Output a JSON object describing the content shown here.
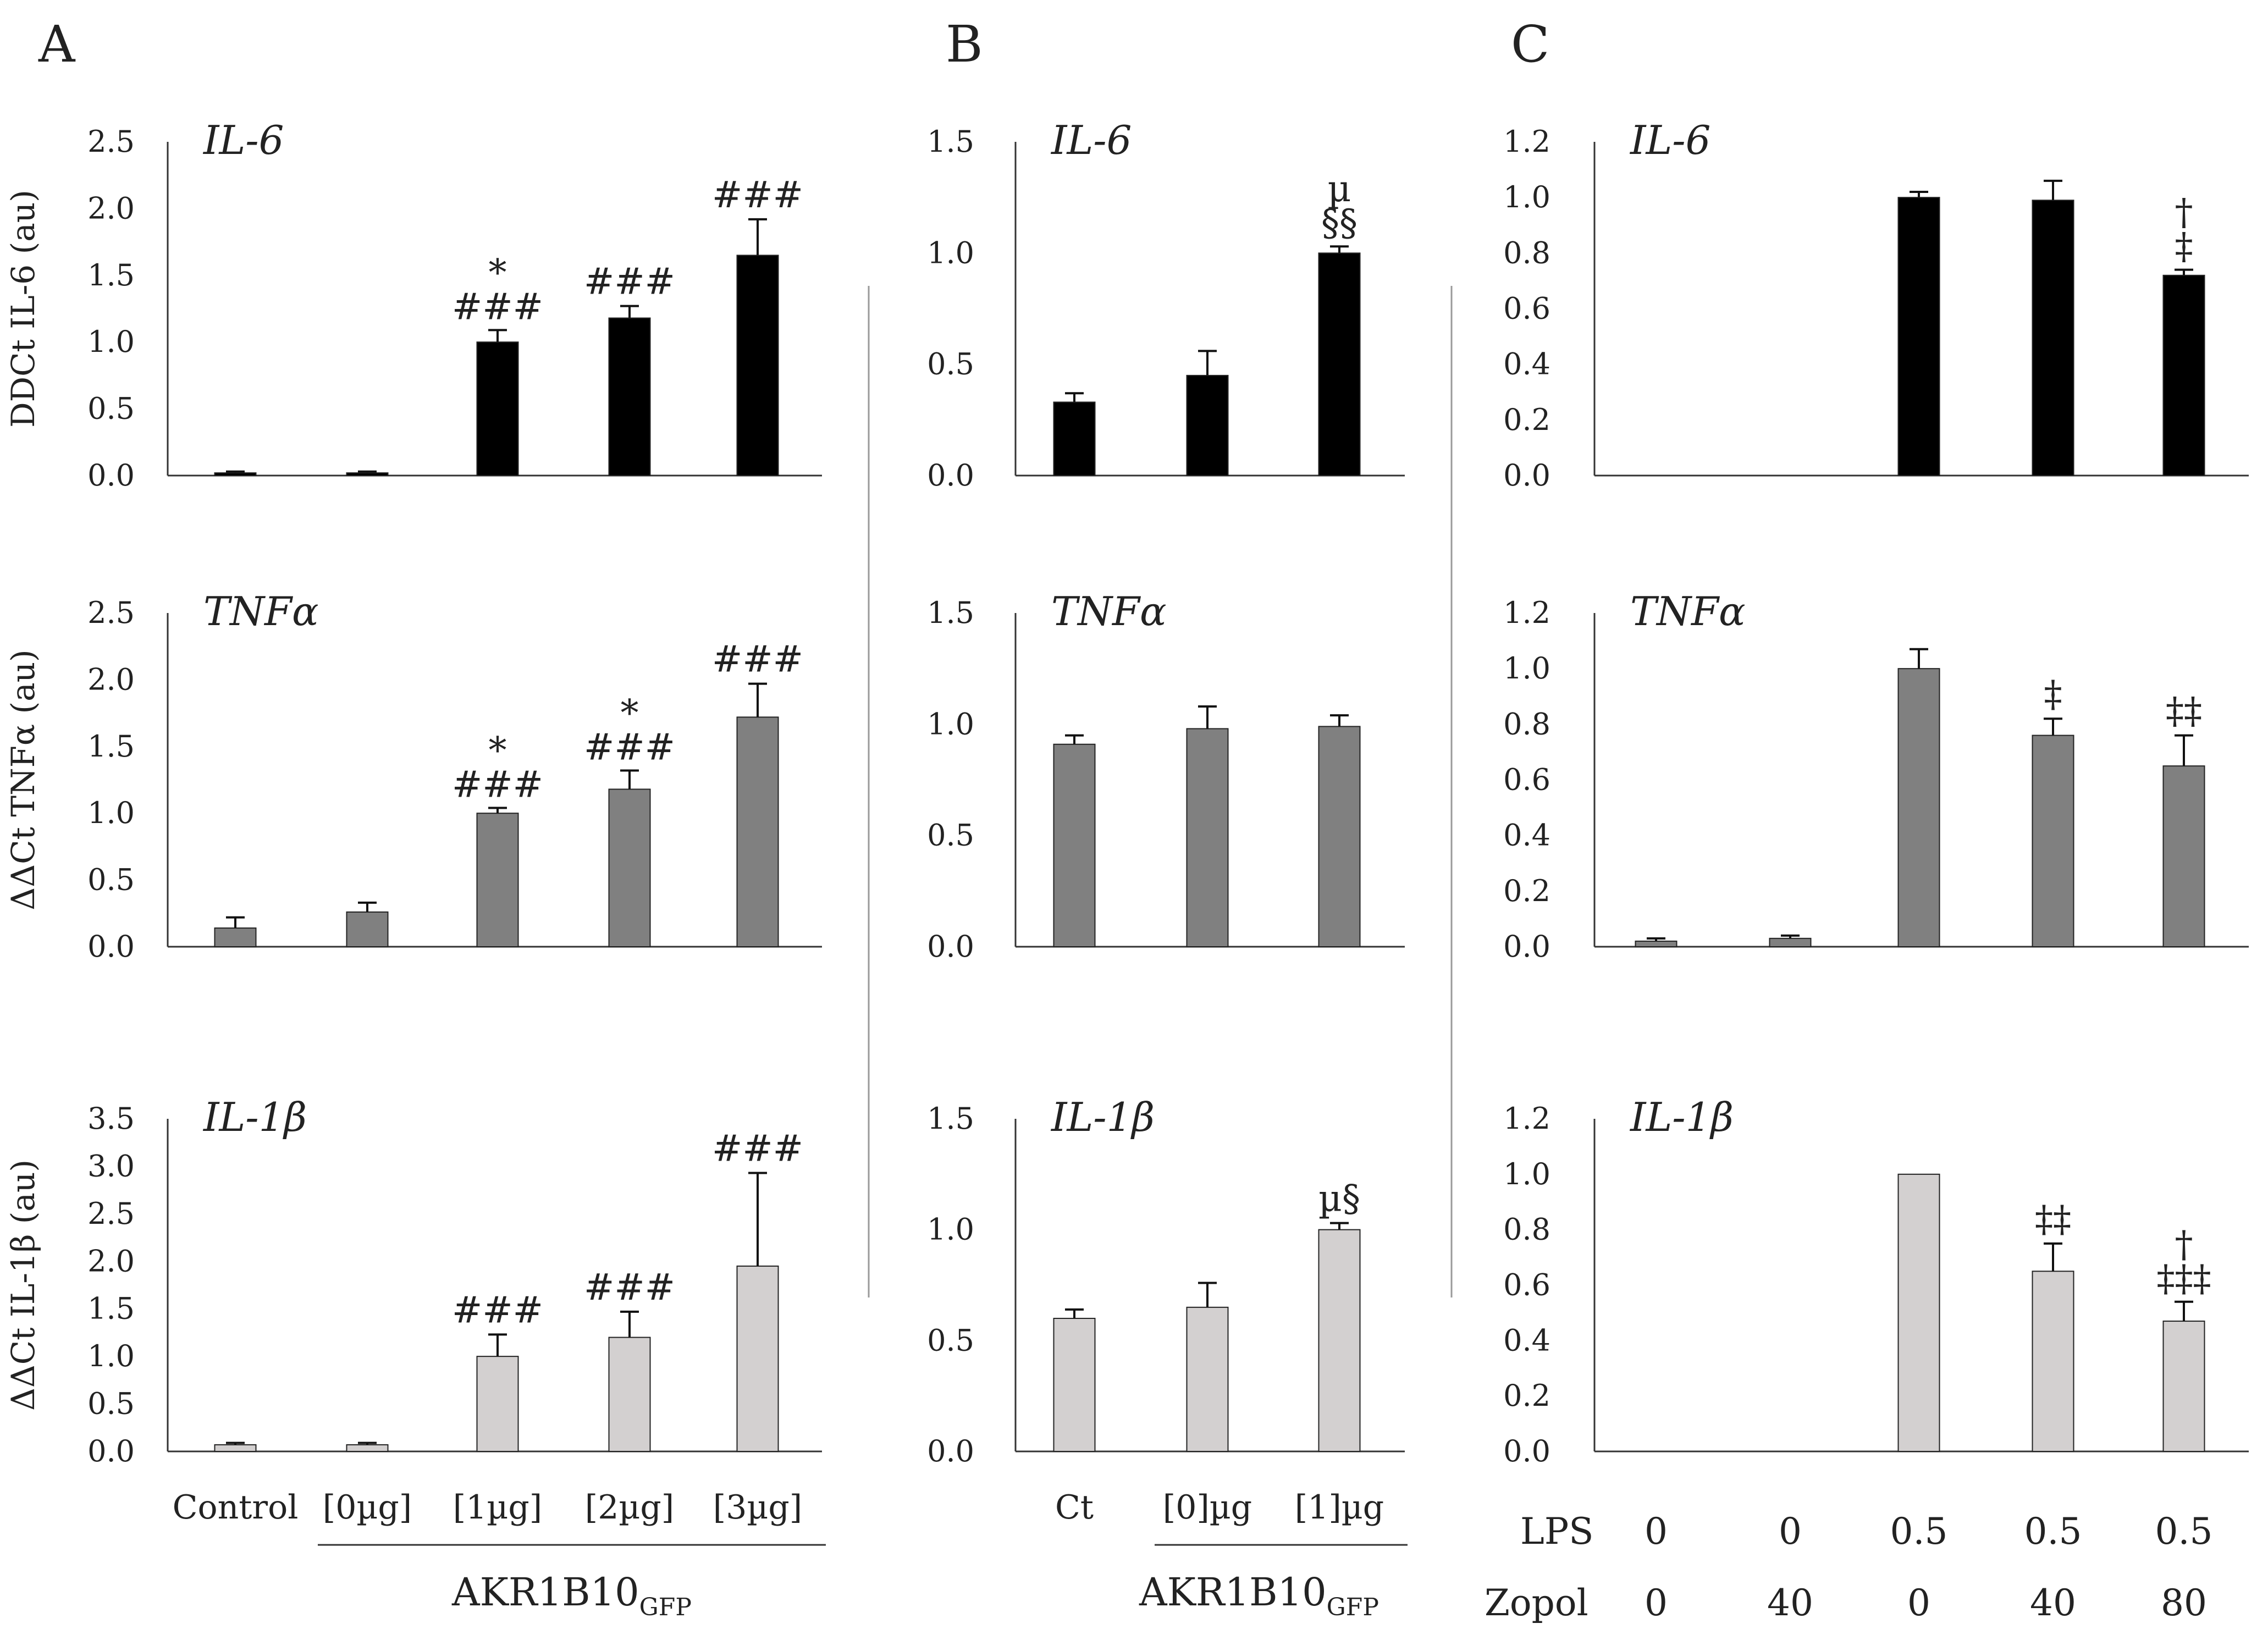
{
  "colors": {
    "il6": "#000000",
    "tnfa": "#808080",
    "il1b": "#d3d0d0",
    "bar_outline": "#222222",
    "separator": "#9a9a9a"
  },
  "chart_data": [
    {
      "type": "bar",
      "panel": "A",
      "row": 0,
      "gene": "IL-6",
      "ylabel": "DDCt IL-6 (au)",
      "ylim": [
        0,
        2.5
      ],
      "yticks": [
        "0.0",
        "0.5",
        "1.0",
        "1.5",
        "2.0",
        "2.5"
      ],
      "color": "il6",
      "categories": [
        "Control",
        "[0µg]",
        "[1µg]",
        "[2µg]",
        "[3µg]"
      ],
      "values": [
        0.02,
        0.02,
        1.0,
        1.18,
        1.65
      ],
      "errors": [
        0.01,
        0.01,
        0.09,
        0.09,
        0.27
      ],
      "annotations": [
        "",
        "",
        "*\n###",
        "###",
        "###"
      ]
    },
    {
      "type": "bar",
      "panel": "A",
      "row": 1,
      "gene": "TNFα",
      "ylabel": "ΔΔCt TNFα (au)",
      "ylim": [
        0,
        2.5
      ],
      "yticks": [
        "0.0",
        "0.5",
        "1.0",
        "1.5",
        "2.0",
        "2.5"
      ],
      "color": "tnfa",
      "categories": [
        "Control",
        "[0µg]",
        "[1µg]",
        "[2µg]",
        "[3µg]"
      ],
      "values": [
        0.14,
        0.26,
        1.0,
        1.18,
        1.72
      ],
      "errors": [
        0.08,
        0.07,
        0.04,
        0.14,
        0.25
      ],
      "annotations": [
        "",
        "",
        "*\n###",
        "*\n###",
        "###"
      ]
    },
    {
      "type": "bar",
      "panel": "A",
      "row": 2,
      "gene": "IL-1β",
      "ylabel": "ΔΔCt IL-1β (au)",
      "ylim": [
        0,
        3.5
      ],
      "yticks": [
        "0.0",
        "0.5",
        "1.0",
        "1.5",
        "2.0",
        "2.5",
        "3.0",
        "3.5"
      ],
      "color": "il1b",
      "categories": [
        "Control",
        "[0µg]",
        "[1µg]",
        "[2µg]",
        "[3µg]"
      ],
      "values": [
        0.07,
        0.07,
        1.0,
        1.2,
        1.95
      ],
      "errors": [
        0.02,
        0.02,
        0.23,
        0.27,
        0.98
      ],
      "annotations": [
        "",
        "",
        "###",
        "###",
        "###"
      ]
    },
    {
      "type": "bar",
      "panel": "B",
      "row": 0,
      "gene": "IL-6",
      "ylabel": "",
      "ylim": [
        0,
        1.5
      ],
      "yticks": [
        "0.0",
        "0.5",
        "1.0",
        "1.5"
      ],
      "color": "il6",
      "categories": [
        "Ct",
        "[0]µg",
        "[1]µg"
      ],
      "values": [
        0.33,
        0.45,
        1.0
      ],
      "errors": [
        0.04,
        0.11,
        0.03
      ],
      "annotations": [
        "",
        "",
        "µ\n§§"
      ]
    },
    {
      "type": "bar",
      "panel": "B",
      "row": 1,
      "gene": "TNFα",
      "ylabel": "",
      "ylim": [
        0,
        1.5
      ],
      "yticks": [
        "0.0",
        "0.5",
        "1.0",
        "1.5"
      ],
      "color": "tnfa",
      "categories": [
        "Ct",
        "[0]µg",
        "[1]µg"
      ],
      "values": [
        0.91,
        0.98,
        0.99
      ],
      "errors": [
        0.04,
        0.1,
        0.05
      ],
      "annotations": [
        "",
        "",
        ""
      ]
    },
    {
      "type": "bar",
      "panel": "B",
      "row": 2,
      "gene": "IL-1β",
      "ylabel": "",
      "ylim": [
        0,
        1.5
      ],
      "yticks": [
        "0.0",
        "0.5",
        "1.0",
        "1.5"
      ],
      "color": "il1b",
      "categories": [
        "Ct",
        "[0]µg",
        "[1]µg"
      ],
      "values": [
        0.6,
        0.65,
        1.0
      ],
      "errors": [
        0.04,
        0.11,
        0.03
      ],
      "annotations": [
        "",
        "",
        "µ§"
      ]
    },
    {
      "type": "bar",
      "panel": "C",
      "row": 0,
      "gene": "IL-6",
      "ylabel": "",
      "ylim": [
        0,
        1.2
      ],
      "yticks": [
        "0.0",
        "0.2",
        "0.4",
        "0.6",
        "0.8",
        "1.0",
        "1.2"
      ],
      "color": "il6",
      "categories": [
        "LPS 0 / Zopol 0",
        "LPS 0 / Zopol 40",
        "LPS 0.5 / Zopol 0",
        "LPS 0.5 / Zopol 40",
        "LPS 0.5 / Zopol 80"
      ],
      "values": [
        0,
        0,
        1.0,
        0.99,
        0.72
      ],
      "errors": [
        0,
        0,
        0.02,
        0.07,
        0.02
      ],
      "annotations": [
        "",
        "",
        "",
        "",
        "†\n‡"
      ]
    },
    {
      "type": "bar",
      "panel": "C",
      "row": 1,
      "gene": "TNFα",
      "ylabel": "",
      "ylim": [
        0,
        1.2
      ],
      "yticks": [
        "0.0",
        "0.2",
        "0.4",
        "0.6",
        "0.8",
        "1.0",
        "1.2"
      ],
      "color": "tnfa",
      "categories": [
        "LPS 0 / Zopol 0",
        "LPS 0 / Zopol 40",
        "LPS 0.5 / Zopol 0",
        "LPS 0.5 / Zopol 40",
        "LPS 0.5 / Zopol 80"
      ],
      "values": [
        0.02,
        0.03,
        1.0,
        0.76,
        0.65
      ],
      "errors": [
        0.01,
        0.01,
        0.07,
        0.06,
        0.11
      ],
      "annotations": [
        "",
        "",
        "",
        "‡",
        "‡‡"
      ]
    },
    {
      "type": "bar",
      "panel": "C",
      "row": 2,
      "gene": "IL-1β",
      "ylabel": "",
      "ylim": [
        0,
        1.2
      ],
      "yticks": [
        "0.0",
        "0.2",
        "0.4",
        "0.6",
        "0.8",
        "1.0",
        "1.2"
      ],
      "color": "il1b",
      "categories": [
        "LPS 0 / Zopol 0",
        "LPS 0 / Zopol 40",
        "LPS 0.5 / Zopol 0",
        "LPS 0.5 / Zopol 40",
        "LPS 0.5 / Zopol 80"
      ],
      "values": [
        0,
        0,
        1.0,
        0.65,
        0.47
      ],
      "errors": [
        0,
        0,
        0,
        0.1,
        0.07
      ],
      "annotations": [
        "",
        "",
        "",
        "‡‡",
        "†\n‡‡‡"
      ]
    }
  ],
  "panels": [
    {
      "label": "A"
    },
    {
      "label": "B"
    },
    {
      "label": "C"
    }
  ],
  "panelA": {
    "xlabels": [
      "Control",
      "[0µg]",
      "[1µg]",
      "[2µg]",
      "[3µg]"
    ],
    "group_main": "AKR1B10",
    "group_sub": "GFP"
  },
  "panelB": {
    "xlabels": [
      "Ct",
      "[0]µg",
      "[1]µg"
    ],
    "group_main": "AKR1B10",
    "group_sub": "GFP"
  },
  "panelC": {
    "row_labels": [
      "LPS",
      "Zopol"
    ],
    "lps": [
      "0",
      "0",
      "0.5",
      "0.5",
      "0.5"
    ],
    "zopol": [
      "0",
      "40",
      "0",
      "40",
      "80"
    ]
  }
}
